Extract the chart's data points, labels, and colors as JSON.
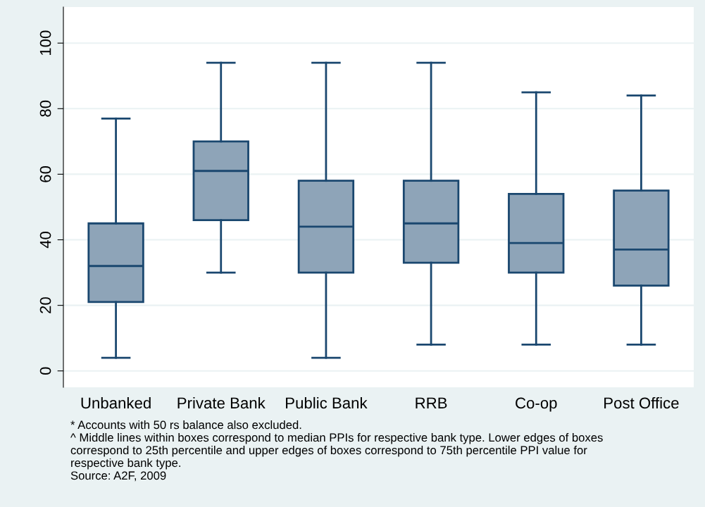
{
  "chart_data": {
    "type": "box",
    "categories": [
      "Unbanked",
      "Private Bank",
      "Public Bank",
      "RRB",
      "Co-op",
      "Post Office"
    ],
    "boxes": [
      {
        "low": 4,
        "q1": 21,
        "median": 32,
        "q3": 45,
        "high": 77
      },
      {
        "low": 30,
        "q1": 46,
        "median": 61,
        "q3": 70,
        "high": 94
      },
      {
        "low": 4,
        "q1": 30,
        "median": 44,
        "q3": 58,
        "high": 94
      },
      {
        "low": 8,
        "q1": 33,
        "median": 45,
        "q3": 58,
        "high": 94
      },
      {
        "low": 8,
        "q1": 30,
        "median": 39,
        "q3": 54,
        "high": 85
      },
      {
        "low": 8,
        "q1": 26,
        "median": 37,
        "q3": 55,
        "high": 84
      }
    ],
    "color": "#8ea4b8",
    "ylim": [
      -5,
      111
    ],
    "yticks": [
      0,
      20,
      40,
      60,
      80,
      100
    ],
    "grid": "y",
    "annotations": [
      "* Accounts with 50 rs balance also excluded.",
      "^ Middle lines within boxes correspond to median PPIs for respective bank type. Lower edges of boxes correspond to 25th percentile and upper edges of boxes correspond to 75th percentile PPI value for respective bank type.",
      "Source: A2F, 2009"
    ]
  }
}
